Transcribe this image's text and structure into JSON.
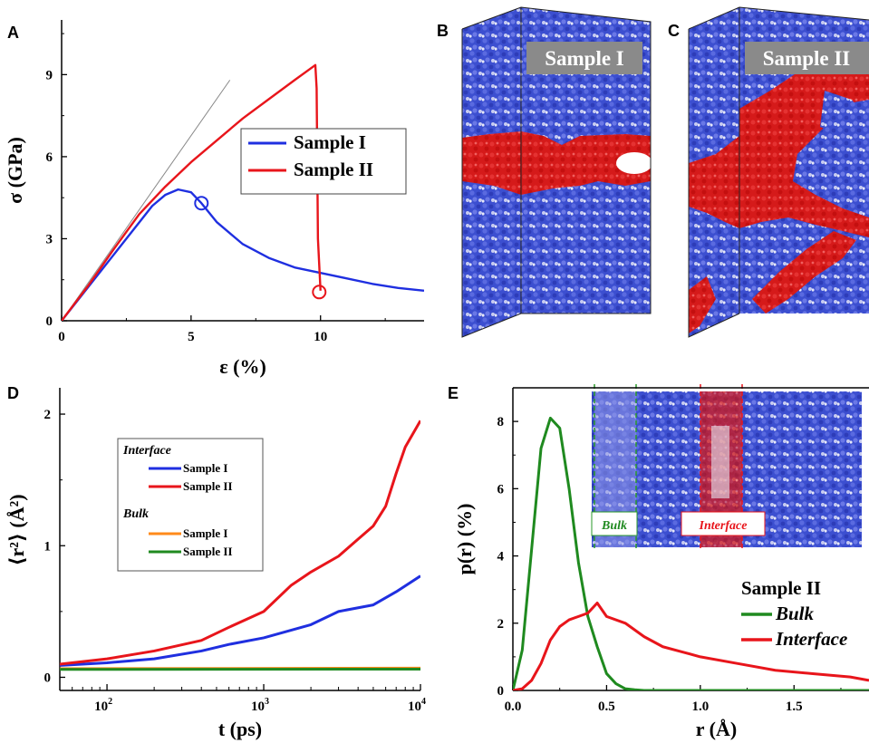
{
  "panels": {
    "A": "A",
    "B": "B",
    "C": "C",
    "D": "D",
    "E": "E"
  },
  "colors": {
    "blue": "#1f2fe0",
    "red": "#e8151b",
    "green": "#1f8a1f",
    "orange": "#ff8a1a",
    "atom_blue": "#3c4fd0",
    "atom_red": "#d51a1a"
  },
  "snapshots": {
    "B_label": "Sample I",
    "C_label": "Sample II"
  },
  "chart_data": [
    {
      "id": "A",
      "type": "line",
      "xlabel": "ε (%)",
      "ylabel": "σ (GPa)",
      "xlim": [
        0,
        14
      ],
      "ylim": [
        0,
        11
      ],
      "xticks": [
        "0",
        "5",
        "10"
      ],
      "yticks": [
        "0",
        "3",
        "6",
        "9"
      ],
      "legend": [
        "Sample I",
        "Sample II"
      ],
      "series": [
        {
          "name": "Sample I",
          "x": [
            0,
            1,
            2,
            3,
            3.5,
            4,
            4.5,
            5,
            5.4,
            6,
            7,
            8,
            9,
            10,
            11,
            12,
            13,
            14
          ],
          "y": [
            0,
            1.2,
            2.4,
            3.6,
            4.2,
            4.6,
            4.8,
            4.7,
            4.3,
            3.6,
            2.8,
            2.3,
            1.95,
            1.75,
            1.55,
            1.35,
            1.2,
            1.1
          ]
        },
        {
          "name": "Sample II",
          "x": [
            0,
            1,
            2,
            3,
            4,
            5,
            6,
            7,
            8,
            9,
            9.8,
            9.85,
            9.9,
            10
          ],
          "y": [
            0,
            1.25,
            2.6,
            3.9,
            4.9,
            5.8,
            6.6,
            7.4,
            8.1,
            8.8,
            9.35,
            8.5,
            3.0,
            1.1
          ]
        }
      ],
      "reference_line": {
        "x": [
          0,
          6.5
        ],
        "y": [
          0,
          8.8
        ]
      },
      "markers": [
        {
          "series": "Sample I",
          "x": 5.4,
          "y": 4.3
        },
        {
          "series": "Sample II",
          "x": 9.95,
          "y": 1.05
        }
      ]
    },
    {
      "id": "D",
      "type": "line",
      "xlabel": "t (ps)",
      "ylabel": "⟨r²⟩ (Å²)",
      "xscale": "log",
      "xlim": [
        50,
        10000
      ],
      "ylim": [
        -0.1,
        2.2
      ],
      "xticks": [
        "10",
        "10",
        "10"
      ],
      "xtick_exp": [
        "2",
        "3",
        "4"
      ],
      "yticks": [
        "0",
        "1",
        "2"
      ],
      "legend_groups": [
        "Interface",
        "Bulk"
      ],
      "legend": [
        "Sample I",
        "Sample II",
        "Sample I",
        "Sample II"
      ],
      "series": [
        {
          "name": "Sample I",
          "group": "Interface",
          "x": [
            50,
            100,
            200,
            400,
            600,
            1000,
            2000,
            3000,
            5000,
            7000,
            10000
          ],
          "y": [
            0.09,
            0.11,
            0.14,
            0.2,
            0.25,
            0.3,
            0.4,
            0.5,
            0.55,
            0.65,
            0.77
          ]
        },
        {
          "name": "Sample II",
          "group": "Interface",
          "x": [
            50,
            100,
            200,
            400,
            600,
            1000,
            1500,
            2000,
            3000,
            4000,
            5000,
            6000,
            7000,
            8000,
            10000
          ],
          "y": [
            0.1,
            0.14,
            0.2,
            0.28,
            0.38,
            0.5,
            0.7,
            0.8,
            0.92,
            1.05,
            1.15,
            1.3,
            1.55,
            1.75,
            1.95
          ]
        },
        {
          "name": "Sample I",
          "group": "Bulk",
          "x": [
            50,
            10000
          ],
          "y": [
            0.065,
            0.07
          ]
        },
        {
          "name": "Sample II",
          "group": "Bulk",
          "x": [
            50,
            10000
          ],
          "y": [
            0.06,
            0.062
          ]
        }
      ]
    },
    {
      "id": "E",
      "type": "line",
      "xlabel": "r (Å)",
      "ylabel": "p(r) (%)",
      "xlim": [
        0,
        1.9
      ],
      "ylim": [
        0,
        9
      ],
      "xticks": [
        "0.0",
        "0.5",
        "1.0",
        "1.5"
      ],
      "yticks": [
        "0",
        "2",
        "4",
        "6",
        "8"
      ],
      "legend_title": "Sample II",
      "legend": [
        "Bulk",
        "Interface"
      ],
      "inset_labels": [
        "Bulk",
        "Interface"
      ],
      "series": [
        {
          "name": "Bulk",
          "x": [
            0,
            0.05,
            0.1,
            0.15,
            0.2,
            0.25,
            0.3,
            0.35,
            0.4,
            0.45,
            0.5,
            0.55,
            0.6,
            0.65,
            0.7,
            1.9
          ],
          "y": [
            0,
            1.2,
            4.2,
            7.2,
            8.1,
            7.8,
            6.0,
            3.8,
            2.2,
            1.3,
            0.5,
            0.2,
            0.05,
            0.02,
            0,
            0
          ]
        },
        {
          "name": "Interface",
          "x": [
            0,
            0.05,
            0.1,
            0.15,
            0.2,
            0.25,
            0.3,
            0.35,
            0.4,
            0.45,
            0.5,
            0.6,
            0.7,
            0.8,
            0.9,
            1.0,
            1.2,
            1.4,
            1.6,
            1.8,
            1.9
          ],
          "y": [
            0,
            0.05,
            0.3,
            0.8,
            1.5,
            1.9,
            2.1,
            2.2,
            2.3,
            2.6,
            2.2,
            2.0,
            1.6,
            1.3,
            1.15,
            1.0,
            0.8,
            0.6,
            0.5,
            0.4,
            0.3
          ]
        }
      ]
    }
  ]
}
